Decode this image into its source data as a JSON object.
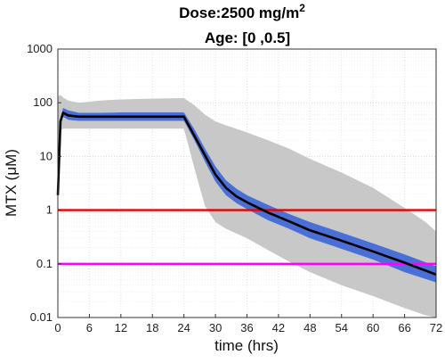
{
  "chart_data": {
    "type": "line",
    "title_line1_prefix": "Dose:2500 mg/m",
    "title_line1_sup": "2",
    "title_line2": "Age: [0 ,0.5]",
    "xlabel": "time (hrs)",
    "ylabel": "MTX (μM)",
    "xlim": [
      0,
      72
    ],
    "ylim": [
      0.01,
      1000
    ],
    "yscale": "log",
    "grid": true,
    "xticks": [
      0,
      6,
      12,
      18,
      24,
      30,
      36,
      42,
      48,
      54,
      60,
      66,
      72
    ],
    "yticks": [
      0.01,
      0.1,
      1,
      10,
      100,
      1000
    ],
    "ytick_labels": [
      "0.01",
      "0.1",
      "1",
      "10",
      "100",
      "1000"
    ],
    "series": [
      {
        "role": "outer-band",
        "color": "#c8c8c8",
        "x": [
          0,
          0.5,
          1,
          2,
          4,
          8,
          12,
          16,
          20,
          24,
          26,
          28,
          30,
          32,
          36,
          40,
          44,
          48,
          54,
          60,
          66,
          70,
          72
        ],
        "upper": [
          130,
          140,
          125,
          110,
          100,
          110,
          115,
          118,
          120,
          122,
          90,
          60,
          45,
          38,
          28,
          20,
          14,
          9,
          5,
          2.6,
          1.1,
          0.6,
          0.4
        ],
        "lower": [
          1.5,
          30,
          33,
          33,
          33,
          33,
          33,
          33,
          33,
          33,
          6,
          1.2,
          0.6,
          0.45,
          0.3,
          0.18,
          0.11,
          0.07,
          0.04,
          0.025,
          0.015,
          0.011,
          0.01
        ]
      },
      {
        "role": "inner-band",
        "color": "#4a6fd6",
        "x": [
          0,
          0.5,
          1,
          2,
          4,
          8,
          12,
          16,
          20,
          24,
          26,
          28,
          30,
          32,
          34,
          36,
          40,
          44,
          48,
          54,
          60,
          66,
          72
        ],
        "upper": [
          2.2,
          50,
          80,
          72,
          65,
          65,
          66,
          66,
          66,
          66,
          32,
          14,
          6.5,
          3.6,
          2.5,
          1.9,
          1.25,
          0.85,
          0.6,
          0.38,
          0.24,
          0.15,
          0.09
        ],
        "lower": [
          1.7,
          42,
          55,
          48,
          46,
          46,
          46,
          46,
          46,
          46,
          20,
          8,
          3.4,
          1.9,
          1.35,
          1.05,
          0.65,
          0.45,
          0.3,
          0.19,
          0.12,
          0.07,
          0.045
        ]
      },
      {
        "role": "median",
        "color": "#000000",
        "x": [
          0,
          0.5,
          1,
          2,
          4,
          8,
          12,
          16,
          20,
          24,
          26,
          28,
          30,
          32,
          34,
          36,
          40,
          44,
          48,
          54,
          60,
          66,
          72
        ],
        "y": [
          1.9,
          45,
          65,
          58,
          55,
          55,
          55,
          55,
          55,
          55,
          24,
          10.5,
          4.6,
          2.6,
          1.8,
          1.4,
          0.9,
          0.62,
          0.42,
          0.27,
          0.17,
          0.105,
          0.063
        ]
      }
    ],
    "reference_lines": [
      {
        "y": 1,
        "color": "#e60000"
      },
      {
        "y": 0.1,
        "color": "#ff00ff"
      }
    ]
  }
}
